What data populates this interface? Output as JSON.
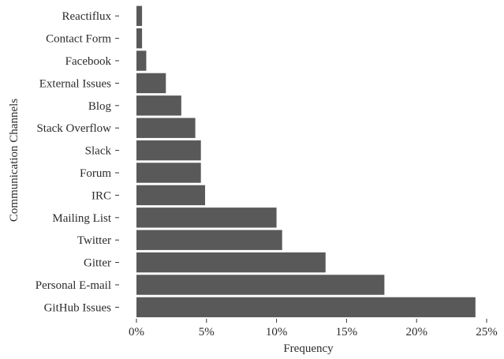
{
  "chart_data": {
    "type": "bar",
    "orientation": "horizontal",
    "categories": [
      "Reactiflux",
      "Contact Form",
      "Facebook",
      "External Issues",
      "Blog",
      "Stack Overflow",
      "Slack",
      "Forum",
      "IRC",
      "Mailing List",
      "Twitter",
      "Gitter",
      "Personal E-mail",
      "GitHub Issues"
    ],
    "values": [
      0.4,
      0.4,
      0.7,
      2.1,
      3.2,
      4.2,
      4.6,
      4.6,
      4.9,
      10.0,
      10.4,
      13.5,
      17.7,
      24.2
    ],
    "xlabel": "Frequency",
    "ylabel": "Communication Channels",
    "xlim": [
      0,
      25
    ],
    "xticks": [
      0,
      5,
      10,
      15,
      20,
      25
    ],
    "xtick_labels": [
      "0%",
      "5%",
      "10%",
      "15%",
      "20%",
      "25%"
    ],
    "grid": false,
    "bar_color": "#595959"
  }
}
